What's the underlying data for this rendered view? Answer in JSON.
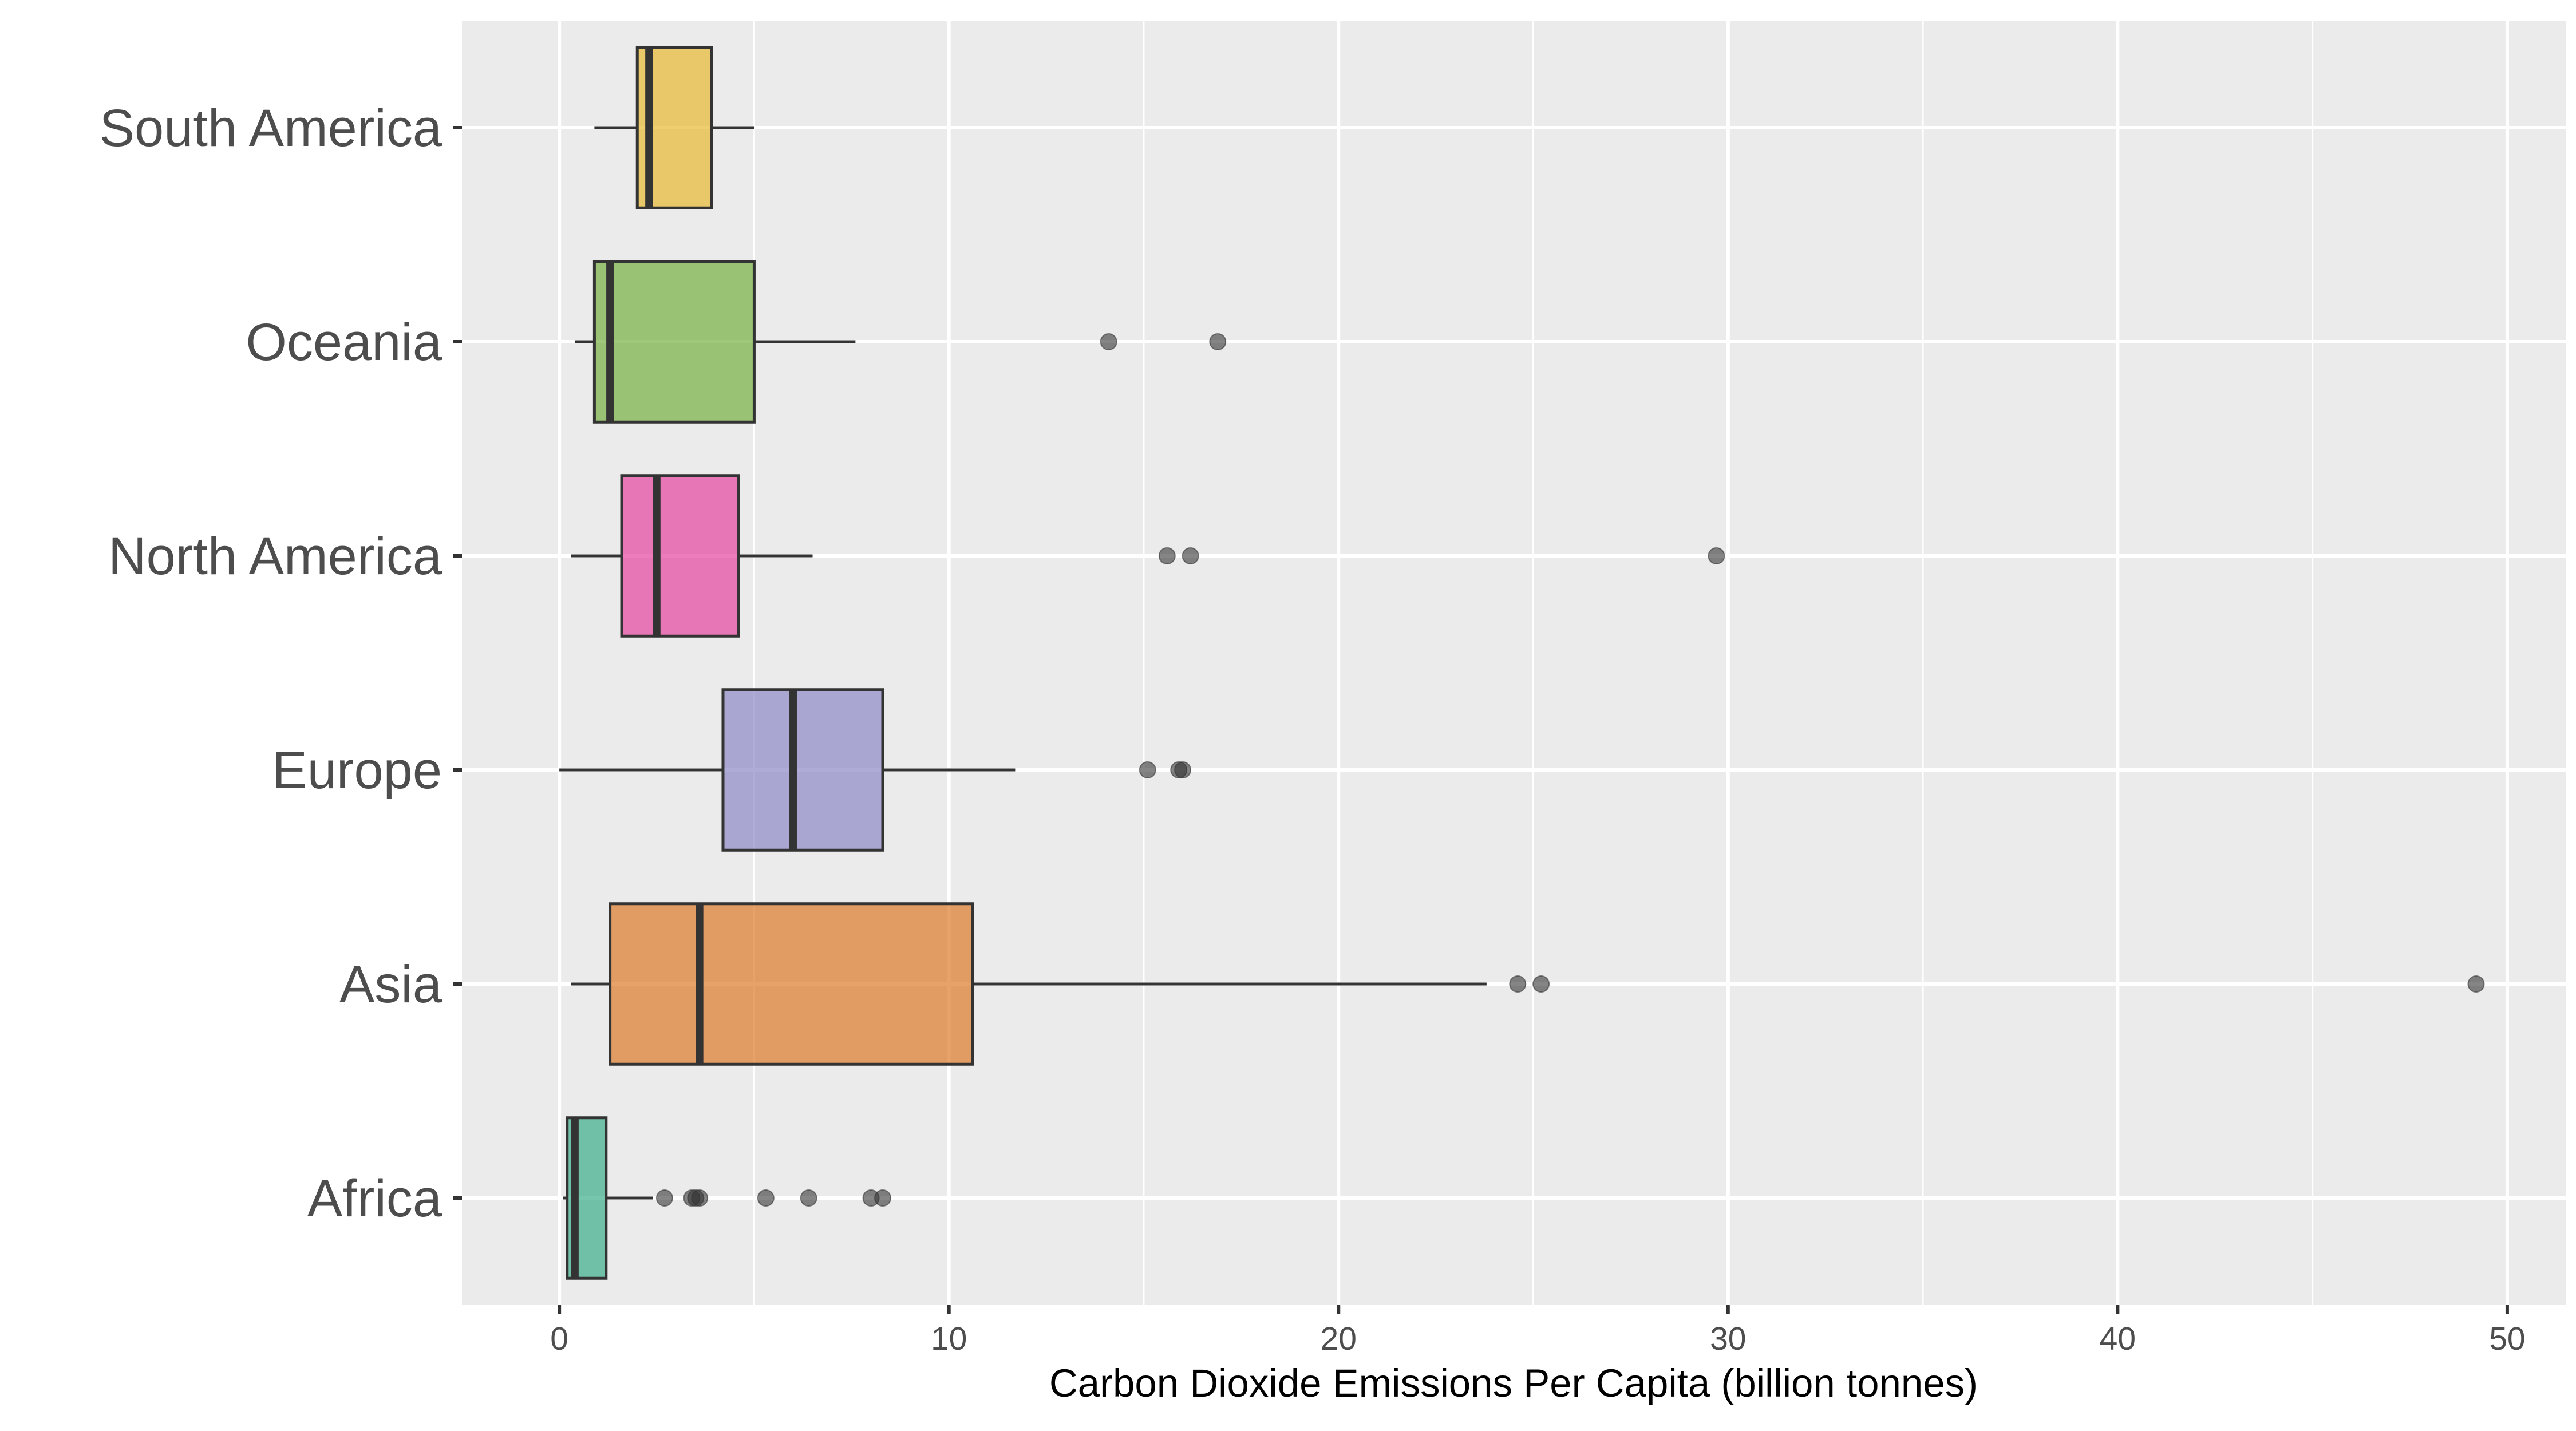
{
  "chart_data": {
    "type": "boxplot",
    "orientation": "horizontal",
    "title": "",
    "xlabel": "Carbon Dioxide Emissions Per Capita (billion tonnes)",
    "ylabel": "",
    "xlim": [
      -2.5,
      51.5
    ],
    "x_ticks": [
      0,
      10,
      20,
      30,
      40,
      50
    ],
    "x_minor_ticks": [
      5,
      15,
      25,
      35,
      45
    ],
    "grid": true,
    "legend": "none",
    "panel_color": "#ebebeb",
    "grid_color": "#ffffff",
    "categories": [
      "South America",
      "Oceania",
      "North America",
      "Europe",
      "Asia",
      "Africa"
    ],
    "series": [
      {
        "category": "South America",
        "whisker_low": 0.9,
        "q1": 2.0,
        "median": 2.3,
        "q3": 3.9,
        "whisker_high": 5.0,
        "outliers": [],
        "color": "#e7b930"
      },
      {
        "category": "Oceania",
        "whisker_low": 0.4,
        "q1": 0.9,
        "median": 1.3,
        "q3": 5.0,
        "whisker_high": 7.6,
        "outliers": [
          14.1,
          16.9
        ],
        "color": "#76b041"
      },
      {
        "category": "North America",
        "whisker_low": 0.3,
        "q1": 1.6,
        "median": 2.5,
        "q3": 4.6,
        "whisker_high": 6.5,
        "outliers": [
          15.6,
          16.2,
          29.7
        ],
        "color": "#e6459f"
      },
      {
        "category": "Europe",
        "whisker_low": 0.0,
        "q1": 4.2,
        "median": 6.0,
        "q3": 8.3,
        "whisker_high": 11.7,
        "outliers": [
          15.1,
          15.9,
          16.0
        ],
        "color": "#8d8ac6"
      },
      {
        "category": "Asia",
        "whisker_low": 0.3,
        "q1": 1.3,
        "median": 3.6,
        "q3": 10.6,
        "whisker_high": 23.8,
        "outliers": [
          24.6,
          25.2,
          49.2
        ],
        "color": "#dd7b2a"
      },
      {
        "category": "Africa",
        "whisker_low": 0.1,
        "q1": 0.2,
        "median": 0.4,
        "q3": 1.2,
        "whisker_high": 2.4,
        "outliers": [
          2.7,
          3.4,
          3.5,
          3.6,
          5.3,
          6.4,
          8.0,
          8.3
        ],
        "color": "#3cae8b"
      }
    ]
  }
}
